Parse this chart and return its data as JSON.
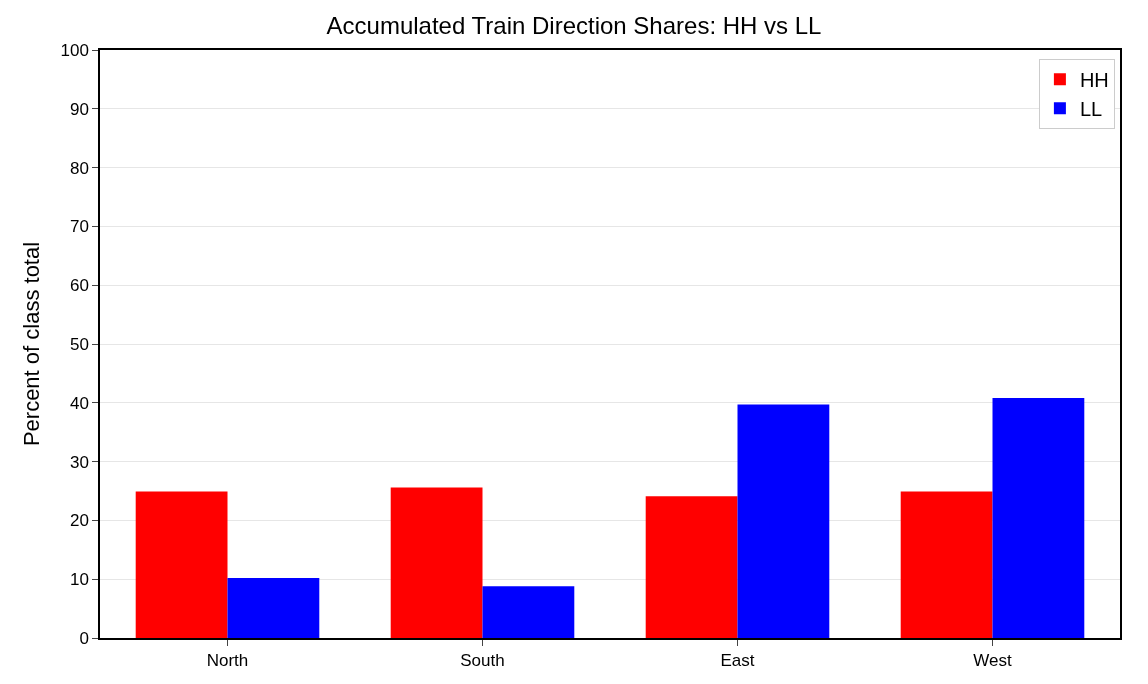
{
  "chart_data": {
    "type": "bar",
    "title": "Accumulated Train Direction Shares: HH vs LL",
    "ylabel": "Percent of class total",
    "categories": [
      "North",
      "South",
      "East",
      "West"
    ],
    "series": [
      {
        "name": "HH",
        "color": "#ff0000",
        "values": [
          24.9,
          25.6,
          24.1,
          24.9
        ]
      },
      {
        "name": "LL",
        "color": "#0000ff",
        "values": [
          10.2,
          8.8,
          39.7,
          40.8
        ]
      }
    ],
    "ylim": [
      0,
      100
    ],
    "yticks": [
      0,
      10,
      20,
      30,
      40,
      50,
      60,
      70,
      80,
      90,
      100
    ],
    "grid": "y",
    "legend": "top right"
  }
}
